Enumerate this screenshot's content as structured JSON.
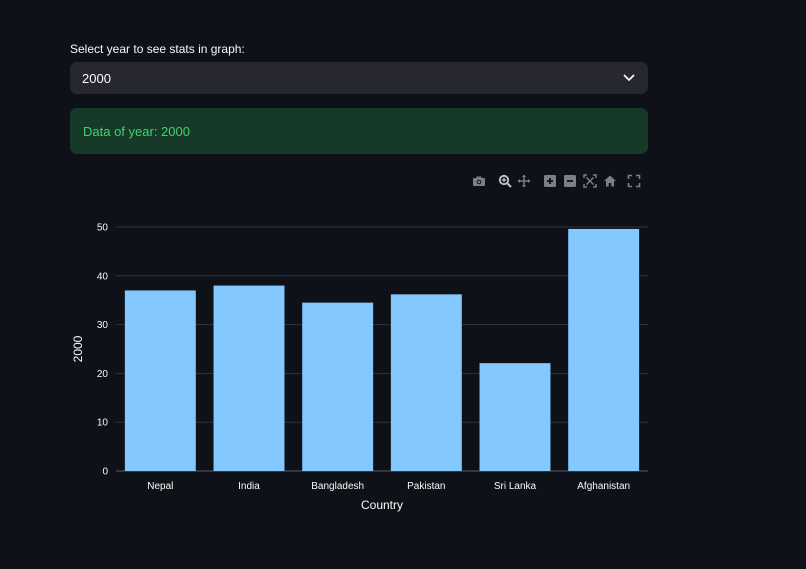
{
  "selector": {
    "label": "Select year to see stats in graph:",
    "selected_value": "2000"
  },
  "alert": {
    "text": "Data of year: 2000"
  },
  "modebar": {
    "icons": [
      "camera-icon",
      "zoom-icon",
      "pan-icon",
      "zoom-in-icon",
      "zoom-out-icon",
      "autoscale-icon",
      "home-icon",
      "fullscreen-icon"
    ]
  },
  "colors": {
    "background": "#0e1117",
    "bar": "#83c9ff",
    "grid": "#31333f",
    "success_bg": "#173928",
    "success_text": "#3dd56d"
  },
  "chart_data": {
    "type": "bar",
    "categories": [
      "Nepal",
      "India",
      "Bangladesh",
      "Pakistan",
      "Sri Lanka",
      "Afghanistan"
    ],
    "values": [
      37.0,
      38.0,
      34.5,
      36.2,
      22.1,
      49.6
    ],
    "xlabel": "Country",
    "ylabel": "2000",
    "ylim": [
      0,
      50
    ],
    "yticks": [
      0,
      10,
      20,
      30,
      40,
      50
    ],
    "grid": true
  }
}
